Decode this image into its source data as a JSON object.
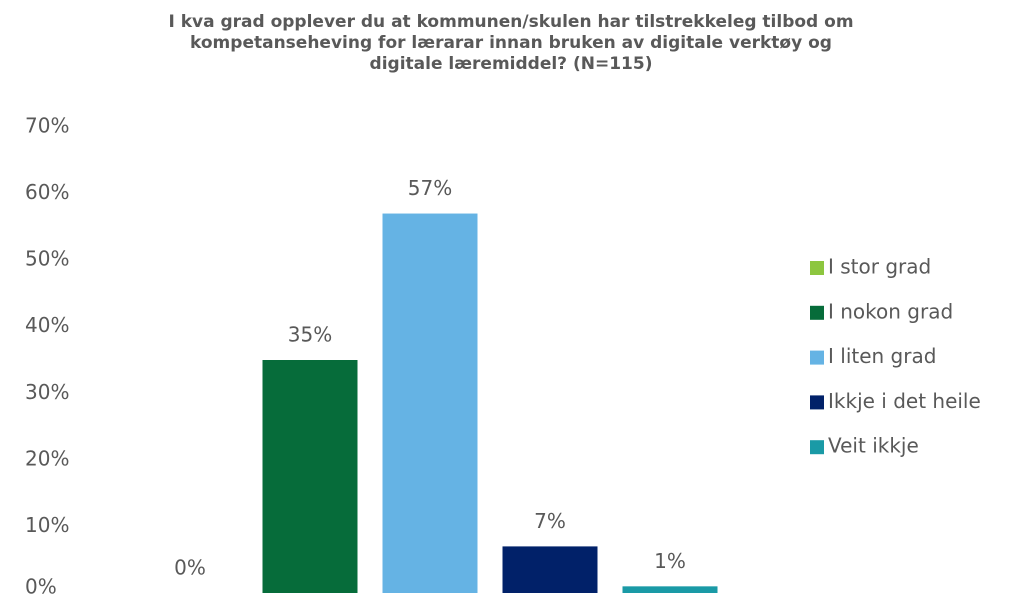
{
  "chart_data": {
    "type": "bar",
    "title": "I kva grad opplever du at kommunen/skulen har tilstrekkeleg tilbod om kompetanseheving for lærarar innan bruken av digitale verktøy og digitale læremiddel? (N=115)",
    "series": [
      {
        "name": "I stor grad",
        "color": "#8dc63f",
        "values": [
          0
        ],
        "value_labels": [
          "0%"
        ]
      },
      {
        "name": "I nokon grad",
        "color": "#066c3a",
        "values": [
          35
        ],
        "value_labels": [
          "35%"
        ]
      },
      {
        "name": "I liten grad",
        "color": "#65b3e4",
        "values": [
          57
        ],
        "value_labels": [
          "57%"
        ]
      },
      {
        "name": "Ikkje i det heile",
        "color": "#012169",
        "values": [
          7
        ],
        "value_labels": [
          "7%"
        ]
      },
      {
        "name": "Veit ikkje",
        "color": "#1a9aa6",
        "values": [
          1
        ],
        "value_labels": [
          "1%"
        ]
      }
    ],
    "ylim": [
      0,
      70
    ],
    "yticks": [
      {
        "value": 0,
        "label": "0%"
      },
      {
        "value": 10,
        "label": "10%"
      },
      {
        "value": 20,
        "label": "20%"
      },
      {
        "value": 30,
        "label": "30%"
      },
      {
        "value": 40,
        "label": "40%"
      },
      {
        "value": 50,
        "label": "50%"
      },
      {
        "value": 60,
        "label": "60%"
      },
      {
        "value": 70,
        "label": "70%"
      }
    ],
    "grid": false,
    "legend": "right"
  }
}
